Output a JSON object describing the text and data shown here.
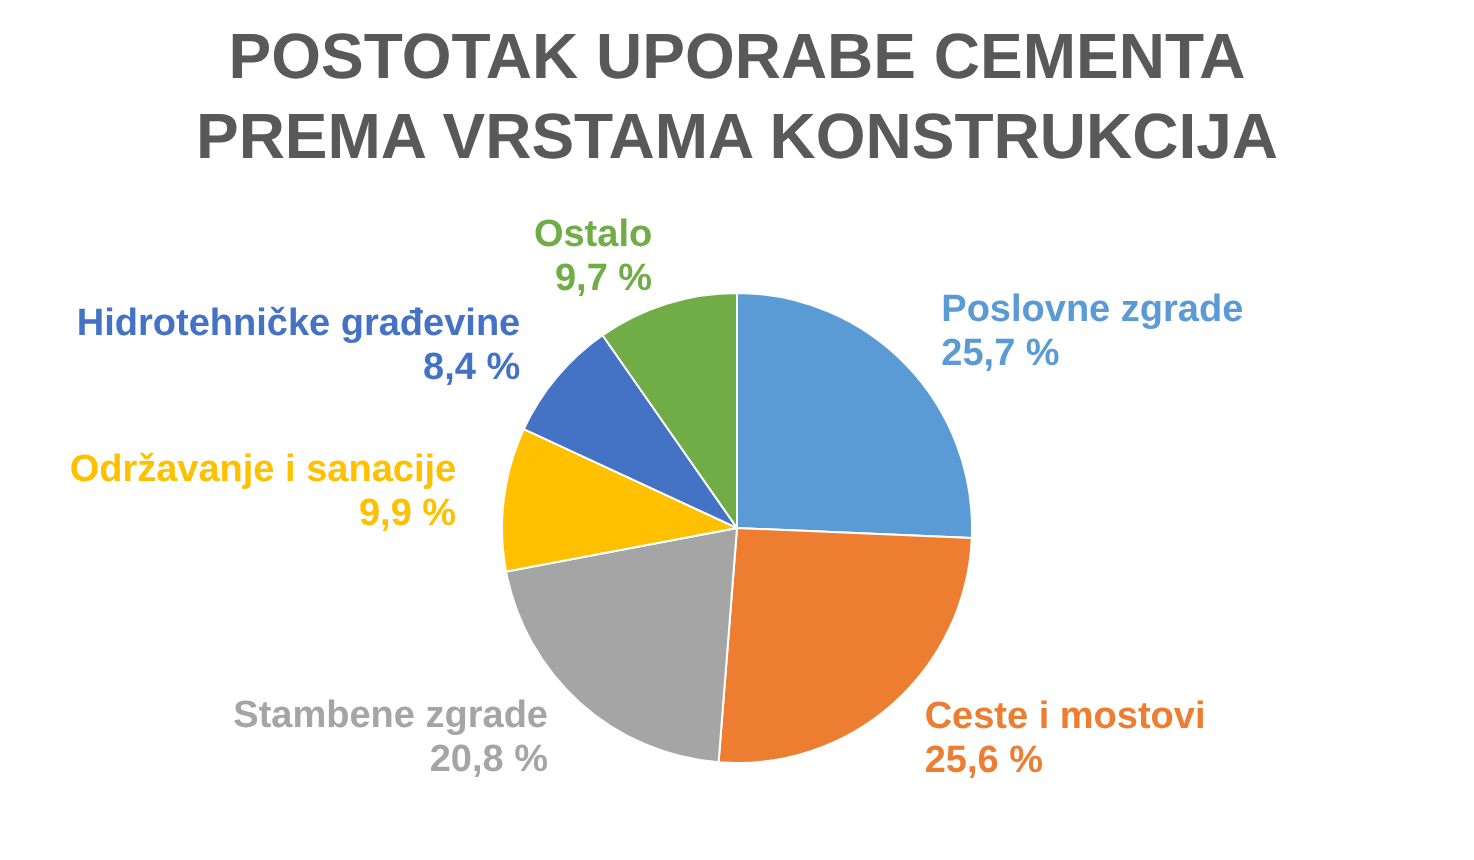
{
  "chart_data": {
    "type": "pie",
    "title": "POSTOTAK UPORABE CEMENTA PREMA VRSTAMA KONSTRUKCIJA",
    "categories": [
      "Poslovne zgrade",
      "Ceste i mostovi",
      "Stambene zgrade",
      "Održavanje i sanacije",
      "Hidrotehničke građevine",
      "Ostalo"
    ],
    "values": [
      25.7,
      25.6,
      20.8,
      9.9,
      8.4,
      9.7
    ],
    "value_labels": [
      "25,7 %",
      "25,6 %",
      "20,8 %",
      "9,9 %",
      "8,4 %",
      "9,7 %"
    ],
    "colors": [
      "#5b9bd5",
      "#ed7d31",
      "#a5a5a5",
      "#ffc000",
      "#4472c4",
      "#70ad47"
    ]
  }
}
